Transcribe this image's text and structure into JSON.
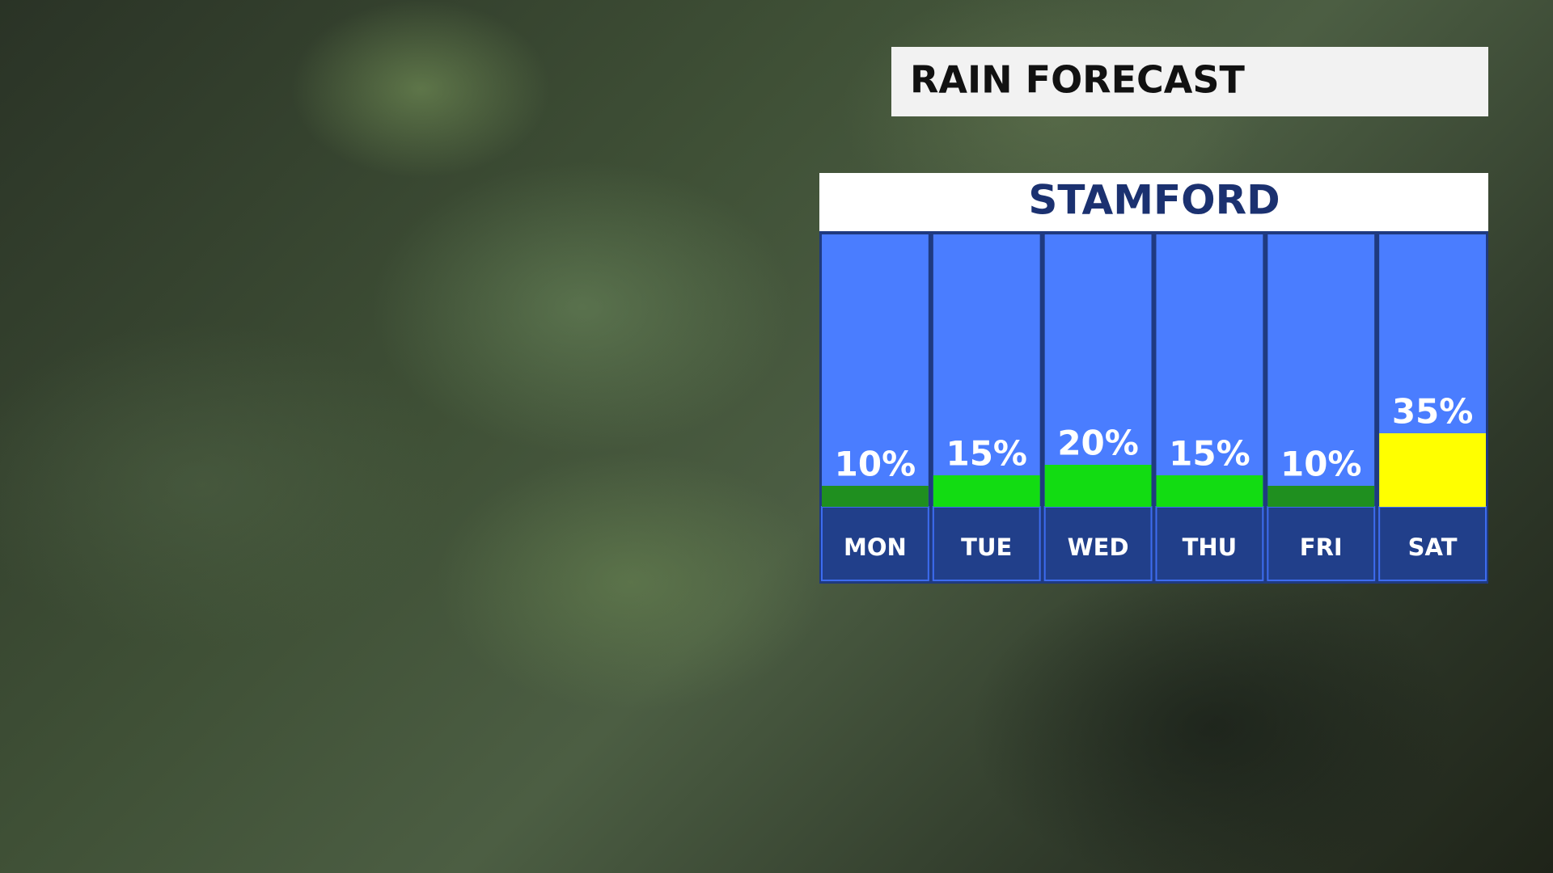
{
  "chart_data": {
    "type": "bar",
    "title": "RAIN FORECAST",
    "subtitle": "STAMFORD",
    "categories": [
      "MON",
      "TUE",
      "WED",
      "THU",
      "FRI",
      "SAT"
    ],
    "values": [
      10,
      15,
      20,
      15,
      10,
      35
    ],
    "value_labels": [
      "10%",
      "15%",
      "20%",
      "15%",
      "10%",
      "35%"
    ],
    "colors": [
      "#1f8f1f",
      "#12dc12",
      "#12dc12",
      "#12dc12",
      "#1f8f1f",
      "#ffff00"
    ]
  }
}
